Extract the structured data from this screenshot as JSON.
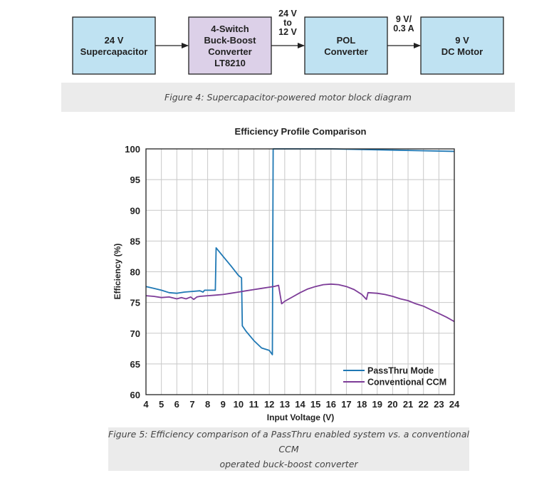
{
  "diagram": {
    "blocks": [
      {
        "id": "supercap",
        "lines": [
          "24 V",
          "Supercapacitor"
        ],
        "fill": "#bfe2f2"
      },
      {
        "id": "buckboost",
        "lines": [
          "4-Switch",
          "Buck-Boost",
          "Converter",
          "LT8210"
        ],
        "fill": "#dcd0e8"
      },
      {
        "id": "pol",
        "lines": [
          "POL",
          "Converter"
        ],
        "fill": "#bfe2f2"
      },
      {
        "id": "motor",
        "lines": [
          "9 V",
          "DC Motor"
        ],
        "fill": "#bfe2f2"
      }
    ],
    "arrow_labels": [
      {
        "id": "label-24v-to-12v",
        "lines": [
          "24 V",
          "to",
          "12 V"
        ]
      },
      {
        "id": "label-9v-03a",
        "lines": [
          "9 V/",
          "0.3 A"
        ]
      }
    ]
  },
  "caption1": "Figure 4: Supercapacitor-powered motor block diagram",
  "caption2_line1": "Figure 5: Efficiency comparison of a PassThru enabled system vs. a conventional CCM",
  "caption2_line2": "operated buck-boost converter",
  "chart_data": {
    "type": "line",
    "title": "Efficiency Profile Comparison",
    "xlabel": "Input Voltage (V)",
    "ylabel": "Efficiency (%)",
    "xlim": [
      4,
      24
    ],
    "ylim": [
      60,
      100
    ],
    "xticks": [
      4,
      5,
      6,
      7,
      8,
      9,
      10,
      11,
      12,
      13,
      14,
      15,
      16,
      17,
      18,
      19,
      20,
      21,
      22,
      23,
      24
    ],
    "yticks": [
      60,
      65,
      70,
      75,
      80,
      85,
      90,
      95,
      100
    ],
    "grid": true,
    "legend_position": "bottom-right",
    "series": [
      {
        "name": "PassThru Mode",
        "color": "#1f78b4",
        "points": [
          [
            4,
            77.6
          ],
          [
            4.5,
            77.3
          ],
          [
            5,
            77.0
          ],
          [
            5.5,
            76.6
          ],
          [
            6,
            76.5
          ],
          [
            6.5,
            76.7
          ],
          [
            7,
            76.8
          ],
          [
            7.5,
            76.9
          ],
          [
            7.7,
            76.7
          ],
          [
            7.8,
            77.0
          ],
          [
            8.2,
            77.0
          ],
          [
            8.5,
            77.0
          ],
          [
            8.55,
            83.9
          ],
          [
            9,
            82.5
          ],
          [
            9.5,
            81.0
          ],
          [
            10,
            79.4
          ],
          [
            10.2,
            79.0
          ],
          [
            10.25,
            71.2
          ],
          [
            10.5,
            70.3
          ],
          [
            11,
            68.8
          ],
          [
            11.5,
            67.6
          ],
          [
            12,
            67.2
          ],
          [
            12.2,
            66.5
          ],
          [
            12.25,
            100
          ],
          [
            12.4,
            100
          ],
          [
            14,
            100
          ],
          [
            16,
            100
          ],
          [
            18,
            99.9
          ],
          [
            20,
            99.8
          ],
          [
            22,
            99.7
          ],
          [
            24,
            99.6
          ]
        ]
      },
      {
        "name": "Conventional CCM",
        "color": "#7d3c98",
        "points": [
          [
            4,
            76.1
          ],
          [
            4.5,
            76.0
          ],
          [
            5,
            75.8
          ],
          [
            5.5,
            75.9
          ],
          [
            6,
            75.6
          ],
          [
            6.3,
            75.8
          ],
          [
            6.6,
            75.6
          ],
          [
            6.9,
            75.9
          ],
          [
            7.1,
            75.5
          ],
          [
            7.3,
            75.9
          ],
          [
            7.5,
            76.0
          ],
          [
            8,
            76.1
          ],
          [
            8.5,
            76.2
          ],
          [
            9,
            76.3
          ],
          [
            9.5,
            76.5
          ],
          [
            10,
            76.7
          ],
          [
            10.5,
            76.9
          ],
          [
            11,
            77.1
          ],
          [
            11.5,
            77.3
          ],
          [
            12,
            77.5
          ],
          [
            12.3,
            77.6
          ],
          [
            12.6,
            77.8
          ],
          [
            12.8,
            74.8
          ],
          [
            13,
            75.2
          ],
          [
            13.5,
            75.9
          ],
          [
            14,
            76.6
          ],
          [
            14.5,
            77.2
          ],
          [
            15,
            77.6
          ],
          [
            15.5,
            77.9
          ],
          [
            16,
            78.0
          ],
          [
            16.5,
            77.9
          ],
          [
            17,
            77.6
          ],
          [
            17.5,
            77.1
          ],
          [
            18,
            76.3
          ],
          [
            18.3,
            75.5
          ],
          [
            18.4,
            76.6
          ],
          [
            19,
            76.5
          ],
          [
            19.5,
            76.3
          ],
          [
            20,
            76.0
          ],
          [
            20.5,
            75.6
          ],
          [
            21,
            75.3
          ],
          [
            21.5,
            74.8
          ],
          [
            22,
            74.4
          ],
          [
            22.5,
            73.8
          ],
          [
            23,
            73.2
          ],
          [
            23.5,
            72.6
          ],
          [
            24,
            71.9
          ]
        ]
      }
    ]
  }
}
